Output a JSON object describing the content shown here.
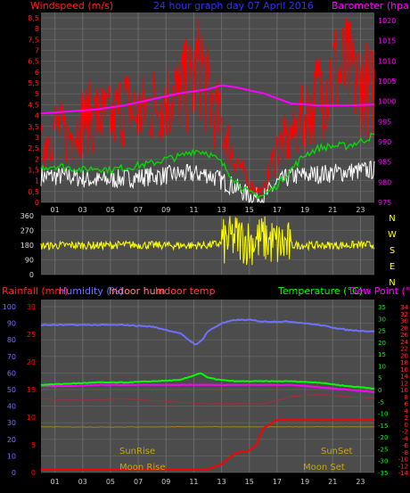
{
  "header": {
    "left": "Windspeed (m/s)",
    "center": "24 hour graph day  07 April 2016",
    "right": "Barometer (hpa)"
  },
  "colors": {
    "background": "#000000",
    "panel": "#4c4c4c",
    "grid": "#6a6a6a",
    "windspeed": "#ff0000",
    "gust": "#ffffff",
    "avgwind": "#00dd00",
    "barometer": "#ff00ff",
    "direction": "#ffff00",
    "rainfall": "#ff0000",
    "humidity": "#7070ff",
    "indoor_hum": "#ff6060",
    "indoor_temp": "#ff4040",
    "temperature": "#00ff00",
    "dewpoint": "#ff00ff",
    "sun_moon": "#c8a800",
    "left_axis_red": "#ff2020",
    "right_axis_magenta": "#ff00ff",
    "right_axis_green": "#00ff00"
  },
  "x_ticks": [
    "01",
    "03",
    "05",
    "07",
    "09",
    "11",
    "13",
    "15",
    "17",
    "19",
    "21",
    "23"
  ],
  "direction_letters": [
    "N",
    "W",
    "S",
    "E",
    "N"
  ],
  "bottom_header": {
    "rainfall": "Rainfall (mm)",
    "humidity": "Humidity (%)",
    "indoor_hum": "Indoor hum",
    "indoor_temp": "Indoor temp",
    "temperature": "Temperature (°C)",
    "dewpoint": "Dew Point (°C)"
  },
  "events": {
    "sunrise": "SunRise",
    "sunset": "SunSet",
    "moonrise": "Moon Rise",
    "moonset": "Moon Set"
  },
  "chart_data": [
    {
      "id": "wind-baro",
      "type": "line",
      "xlim": [
        0,
        24
      ],
      "y_left": {
        "ticks": [
          "0",
          "0,5",
          "1",
          "1,5",
          "2",
          "2,5",
          "3",
          "3,5",
          "4",
          "4,5",
          "5",
          "5,5",
          "6",
          "6,5",
          "7",
          "7,5",
          "8",
          "8,5"
        ],
        "ylim": [
          0,
          8.5
        ]
      },
      "y_right": {
        "ticks": [
          "975",
          "980",
          "985",
          "990",
          "995",
          "1000",
          "1005",
          "1010",
          "1015",
          "1020"
        ],
        "ylim": [
          975,
          1022
        ]
      },
      "series": [
        {
          "name": "Windspeed",
          "values_x": [
            0,
            1,
            2,
            3,
            4,
            5,
            6,
            7,
            8,
            9,
            10,
            11,
            11.5,
            12,
            13,
            14,
            15,
            16,
            17,
            18,
            19,
            20,
            21,
            22,
            23,
            24
          ],
          "values_y": [
            2.5,
            3.5,
            3.0,
            3.8,
            4.0,
            3.8,
            4.5,
            4.0,
            4.5,
            4.8,
            5.0,
            5.5,
            6.5,
            5.0,
            3.5,
            2.0,
            0.8,
            0.5,
            2.5,
            3.0,
            4.0,
            5.0,
            6.0,
            6.0,
            5.5,
            5.0
          ]
        },
        {
          "name": "Gust",
          "values_x": [
            0,
            2,
            4,
            6,
            8,
            10,
            12,
            13,
            14,
            15,
            16,
            17,
            18,
            20,
            22,
            24
          ],
          "values_y": [
            1.2,
            1.2,
            1.0,
            1.1,
            1.2,
            1.3,
            1.3,
            1.0,
            0.7,
            0.3,
            0.2,
            0.9,
            1.2,
            1.3,
            1.4,
            1.5
          ]
        },
        {
          "name": "Average wind",
          "values_x": [
            0,
            1,
            2,
            3,
            4,
            5,
            6,
            7,
            8,
            9,
            10,
            11,
            12,
            13,
            14,
            15,
            16,
            17,
            18,
            19,
            20,
            21,
            22,
            23,
            24
          ],
          "values_y": [
            1.6,
            1.7,
            1.6,
            1.5,
            1.6,
            1.5,
            1.6,
            1.7,
            1.8,
            2.0,
            2.1,
            2.4,
            2.3,
            1.8,
            1.0,
            0.4,
            0.3,
            0.8,
            1.5,
            2.2,
            2.5,
            2.6,
            2.6,
            2.8,
            3.1
          ]
        },
        {
          "name": "Barometer",
          "values_x": [
            0,
            2,
            4,
            6,
            8,
            10,
            12,
            13,
            14,
            16,
            18,
            20,
            22,
            24
          ],
          "values_y": [
            997,
            997.5,
            998,
            999,
            1000.5,
            1002,
            1003,
            1004,
            1003.5,
            1002,
            999.5,
            999,
            999,
            999.2
          ]
        }
      ]
    },
    {
      "id": "direction",
      "type": "line",
      "xlim": [
        0,
        24
      ],
      "y_ticks": [
        "360",
        "270",
        "180",
        "90",
        "0"
      ],
      "ylim": [
        0,
        360
      ],
      "series": [
        {
          "name": "Wind direction",
          "values_x": [
            0,
            2,
            4,
            6,
            8,
            10,
            12,
            13,
            14,
            15,
            16,
            17,
            18,
            20,
            22,
            24
          ],
          "values_y": [
            175,
            180,
            178,
            182,
            180,
            178,
            180,
            190,
            230,
            200,
            220,
            185,
            180,
            178,
            180,
            182
          ]
        }
      ]
    },
    {
      "id": "rain-temp",
      "type": "line",
      "xlim": [
        0,
        24
      ],
      "y_left_rain": {
        "ticks": [
          "0",
          "5",
          "10",
          "15",
          "20",
          "25",
          "30"
        ],
        "ylim": [
          0,
          30
        ]
      },
      "y_left_hum": {
        "ticks": [
          "0",
          "10",
          "20",
          "30",
          "40",
          "50",
          "60",
          "70",
          "80",
          "90",
          "100"
        ],
        "ylim": [
          0,
          100
        ]
      },
      "y_right_temp": {
        "ticks": [
          "-35",
          "-30",
          "-25",
          "-20",
          "-15",
          "-10",
          "-5",
          "0",
          "5",
          "10",
          "15",
          "20",
          "25",
          "30",
          "35"
        ],
        "ylim": [
          -35,
          35
        ]
      },
      "y_right_dew": {
        "ticks": [
          "-14",
          "-12",
          "-10",
          "-8",
          "-6",
          "-4",
          "-2",
          "0",
          "2",
          "4",
          "6",
          "8",
          "10",
          "12",
          "14",
          "16",
          "18",
          "20",
          "22",
          "24",
          "26",
          "28",
          "30",
          "32",
          "34"
        ],
        "ylim": [
          -14,
          34
        ]
      },
      "series": [
        {
          "name": "Rainfall",
          "values_x": [
            0,
            11.5,
            12,
            13,
            13.5,
            14,
            15,
            15.5,
            16,
            17,
            24
          ],
          "values_y": [
            0.5,
            0.5,
            0.6,
            1.5,
            2.5,
            3.5,
            4.0,
            5.0,
            8.0,
            9.5,
            9.5
          ]
        },
        {
          "name": "Humidity",
          "values_x": [
            0,
            2,
            4,
            6,
            8,
            10,
            10.8,
            11.2,
            11.6,
            12,
            13,
            14,
            15,
            16,
            18,
            20,
            22,
            24
          ],
          "values_y": [
            89,
            89,
            89,
            89,
            88,
            84,
            79,
            77,
            80,
            85,
            90,
            92,
            92,
            91,
            91,
            89,
            86,
            85
          ]
        },
        {
          "name": "Temperature",
          "values_x": [
            0,
            2,
            4,
            6,
            8,
            10,
            11,
            11.5,
            12,
            13,
            14,
            16,
            18,
            20,
            22,
            24
          ],
          "values_y": [
            2,
            2.5,
            3,
            3,
            3.5,
            4,
            6,
            7,
            5,
            4,
            3.5,
            3.5,
            3.5,
            3,
            1.5,
            0.5
          ]
        },
        {
          "name": "Dew Point",
          "values_x": [
            0,
            2,
            4,
            6,
            8,
            10,
            12,
            14,
            16,
            18,
            20,
            22,
            24
          ],
          "values_y": [
            1.5,
            1.5,
            2,
            2,
            2,
            2,
            2,
            2,
            2,
            2,
            1,
            0,
            -1
          ]
        },
        {
          "name": "Indoor temp",
          "values_x": [
            0,
            3,
            6,
            9,
            12,
            14,
            16,
            18,
            20,
            22,
            24
          ],
          "values_y": [
            -4,
            -4.5,
            -4,
            -5,
            -6,
            -6,
            -6,
            -3,
            -2,
            -3,
            -3.5
          ]
        },
        {
          "name": "Indoor hum",
          "values_x": [
            0,
            4,
            8,
            12,
            16,
            20,
            24
          ],
          "values_y": [
            27.5,
            27.4,
            27.5,
            27.6,
            27.5,
            27.6,
            27.5
          ]
        }
      ]
    }
  ]
}
